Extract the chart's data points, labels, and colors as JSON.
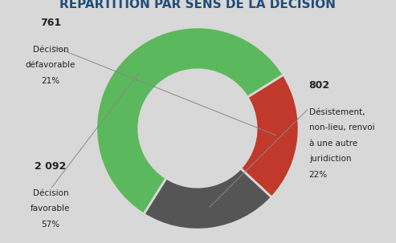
{
  "title": "RÉPARTITION PAR SENS DE LA DÉCISION",
  "title_fontsize": 11,
  "title_fontweight": "bold",
  "title_color": "#1F4E79",
  "slices": [
    {
      "count": "2 092",
      "value": 2092,
      "color": "#5CB85C",
      "pct": "57%",
      "line1": "Décision",
      "line2": "favorable"
    },
    {
      "count": "761",
      "value": 761,
      "color": "#C0392B",
      "pct": "21%",
      "line1": "Décision",
      "line2": "défavorable"
    },
    {
      "count": "802",
      "value": 802,
      "color": "#555555",
      "pct": "22%",
      "line1": "Désistement,",
      "line2": "non-lieu, renvoi\nà une autre\njuridiction"
    }
  ],
  "background_color": "#D8D8D8",
  "wedge_linewidth": 2.0,
  "wedge_edgecolor": "#D8D8D8",
  "annotation_color": "#222222",
  "annotation_fontsize": 7.5,
  "count_fontsize": 9,
  "count_fontweight": "bold",
  "startangle": 238,
  "donut_width": 0.42
}
